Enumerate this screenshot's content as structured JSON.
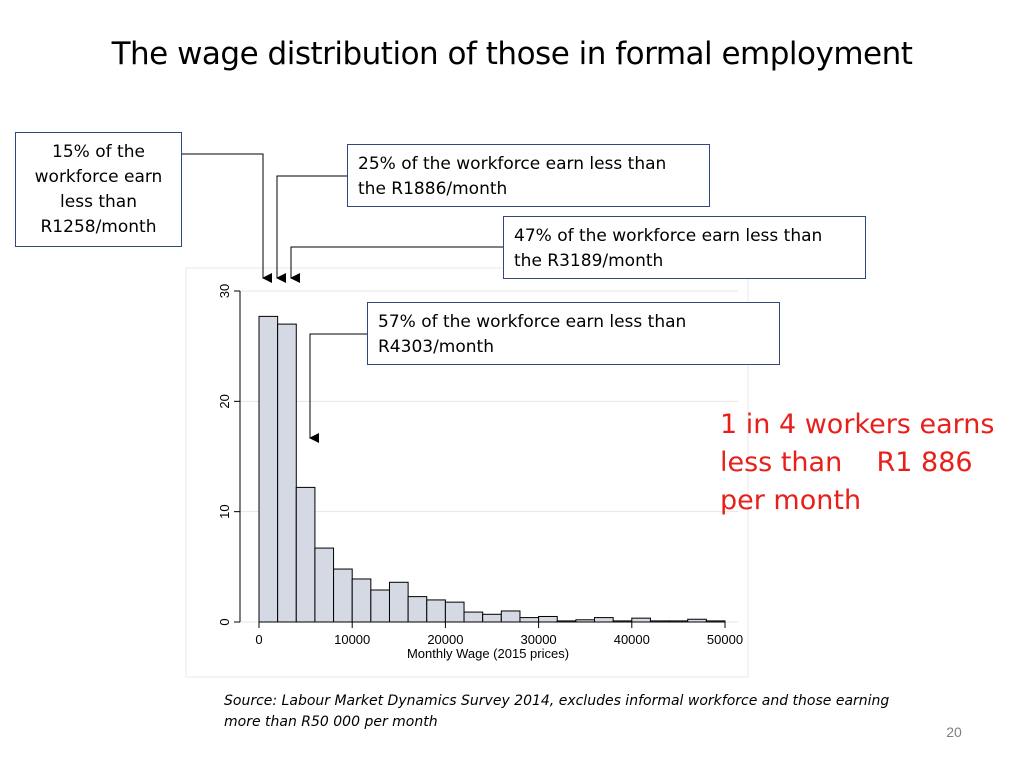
{
  "slide": {
    "title": "The wage distribution of those in formal employment",
    "source": "Source: Labour Market Dynamics Survey 2014, excludes informal workforce and those earning more than R50 000 per month",
    "page_number": "20"
  },
  "callouts": [
    {
      "id": "15",
      "lines": [
        "15% of the",
        "workforce earn",
        "less than",
        "R1258/month"
      ]
    },
    {
      "id": "25",
      "lines": [
        "25% of the workforce earn less than",
        "the R1886/month"
      ]
    },
    {
      "id": "47",
      "lines": [
        "47% of the workforce earn less than",
        "the R3189/month"
      ]
    },
    {
      "id": "57",
      "lines": [
        "57% of the workforce earn less than",
        "R4303/month"
      ]
    }
  ],
  "side_note": {
    "text": "1 in 4 workers earns\nless than    R1 886\nper month",
    "color": "#e8201c"
  },
  "colors": {
    "bar_fill": "#d4d9e4",
    "bar_stroke": "#000000",
    "callout_border": "#2f4a7a",
    "grid": "#e6e6e6"
  },
  "chart_data": {
    "type": "bar",
    "xlabel": "Monthly Wage (2015 prices)",
    "ylabel": "",
    "xlim": [
      0,
      50000
    ],
    "ylim": [
      0,
      30
    ],
    "xticks": [
      0,
      10000,
      20000,
      30000,
      40000,
      50000
    ],
    "yticks": [
      0,
      10,
      20,
      30
    ],
    "grid": true,
    "bin_width": 2000,
    "bins": [
      0,
      2000,
      4000,
      6000,
      8000,
      10000,
      12000,
      14000,
      16000,
      18000,
      20000,
      22000,
      24000,
      26000,
      28000,
      30000,
      32000,
      34000,
      36000,
      38000,
      40000,
      42000,
      44000,
      46000,
      48000
    ],
    "values": [
      27.7,
      27.0,
      12.2,
      6.7,
      4.8,
      3.9,
      2.9,
      3.6,
      2.3,
      2.0,
      1.8,
      0.9,
      0.7,
      1.0,
      0.4,
      0.5,
      0.1,
      0.2,
      0.4,
      0.1,
      0.35,
      0.1,
      0.1,
      0.25,
      0.1
    ],
    "markers": [
      1258,
      1886,
      3189,
      4303
    ]
  }
}
